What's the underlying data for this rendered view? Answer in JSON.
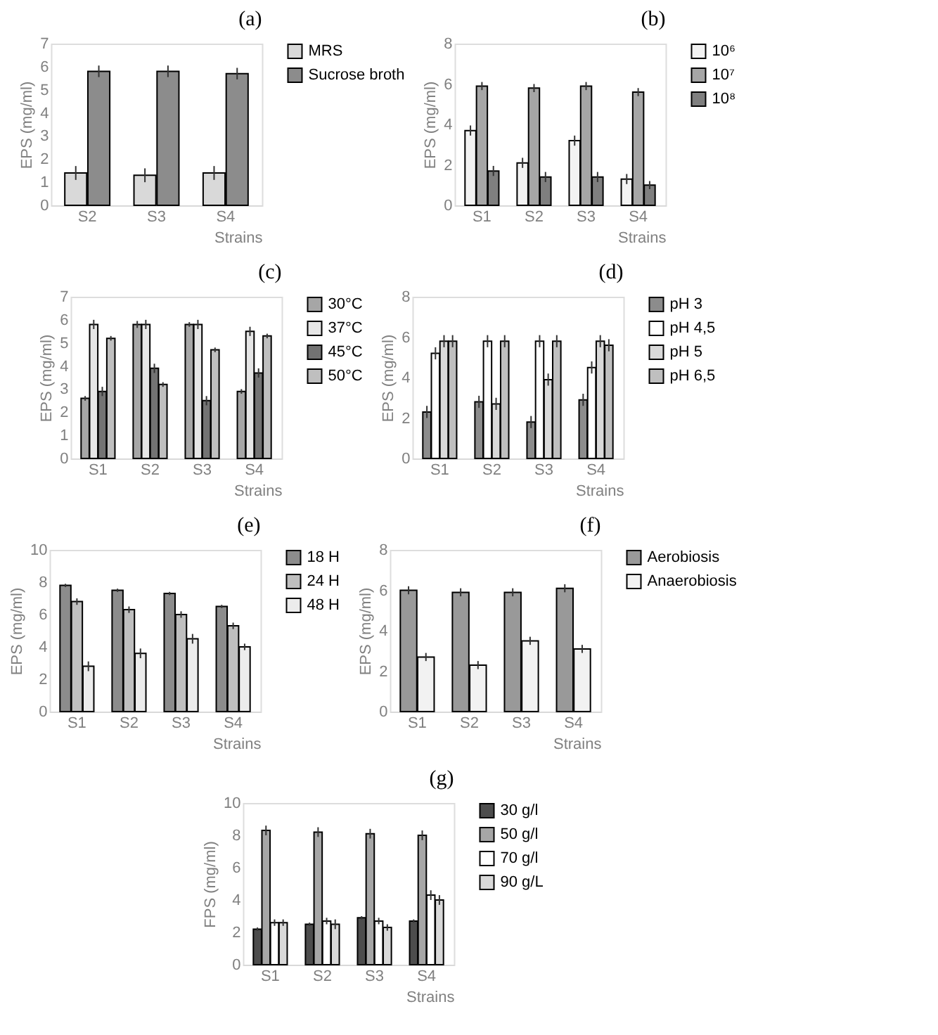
{
  "chart_data": [
    {
      "type": "bar",
      "title": "(a)",
      "xlabel": "Strains",
      "ylabel": "EPS (mg/ml)",
      "categories": [
        "S2",
        "S3",
        "S4"
      ],
      "ylim": [
        0,
        7
      ],
      "yticks": [
        0,
        1,
        2,
        3,
        4,
        5,
        6,
        7
      ],
      "grid": false,
      "legend": "right",
      "series": [
        {
          "name": "MRS",
          "color": "#d9d9d9",
          "values": [
            1.4,
            1.3,
            1.4
          ],
          "errors": [
            0.3,
            0.3,
            0.3
          ]
        },
        {
          "name": "Sucrose broth",
          "color": "#8c8c8c",
          "values": [
            5.8,
            5.8,
            5.7
          ],
          "errors": [
            0.25,
            0.25,
            0.25
          ]
        }
      ]
    },
    {
      "type": "bar",
      "title": "(b)",
      "xlabel": "Strains",
      "ylabel": "EPS (mg/ml)",
      "categories": [
        "S1",
        "S2",
        "S3",
        "S4"
      ],
      "ylim": [
        0,
        8
      ],
      "yticks": [
        0,
        2,
        4,
        6,
        8
      ],
      "grid": false,
      "legend": "right",
      "series": [
        {
          "name": "10⁶",
          "color": "#f2f2f2",
          "values": [
            3.7,
            2.1,
            3.2,
            1.3
          ],
          "errors": [
            0.25,
            0.25,
            0.25,
            0.25
          ]
        },
        {
          "name": "10⁷",
          "color": "#a6a6a6",
          "values": [
            5.9,
            5.8,
            5.9,
            5.6
          ],
          "errors": [
            0.2,
            0.2,
            0.2,
            0.2
          ]
        },
        {
          "name": "10⁸",
          "color": "#7f7f7f",
          "values": [
            1.7,
            1.4,
            1.4,
            1.0
          ],
          "errors": [
            0.25,
            0.25,
            0.25,
            0.2
          ]
        }
      ]
    },
    {
      "type": "bar",
      "title": "(c)",
      "xlabel": "Strains",
      "ylabel": "EPS (mg/ml)",
      "categories": [
        "S1",
        "S2",
        "S3",
        "S4"
      ],
      "ylim": [
        0,
        7
      ],
      "yticks": [
        0,
        1,
        2,
        3,
        4,
        5,
        6,
        7
      ],
      "grid": false,
      "legend": "right",
      "series": [
        {
          "name": "30°C",
          "color": "#a6a6a6",
          "values": [
            2.6,
            5.8,
            5.8,
            2.9
          ],
          "errors": [
            0.1,
            0.15,
            0.1,
            0.1
          ]
        },
        {
          "name": "37°C",
          "color": "#e6e6e6",
          "values": [
            5.8,
            5.8,
            5.8,
            5.5
          ],
          "errors": [
            0.2,
            0.2,
            0.2,
            0.2
          ]
        },
        {
          "name": "45°C",
          "color": "#737373",
          "values": [
            2.9,
            3.9,
            2.5,
            3.7
          ],
          "errors": [
            0.2,
            0.2,
            0.2,
            0.2
          ]
        },
        {
          "name": "50°C",
          "color": "#bfbfbf",
          "values": [
            5.2,
            3.2,
            4.7,
            5.3
          ],
          "errors": [
            0.1,
            0.1,
            0.1,
            0.1
          ]
        }
      ]
    },
    {
      "type": "bar",
      "title": "(d)",
      "xlabel": "Strains",
      "ylabel": "EPS (mg/ml)",
      "categories": [
        "S1",
        "S2",
        "S3",
        "S4"
      ],
      "ylim": [
        0,
        8
      ],
      "yticks": [
        0,
        2,
        4,
        6,
        8
      ],
      "grid": false,
      "legend": "right",
      "series": [
        {
          "name": "pH 3",
          "color": "#8c8c8c",
          "values": [
            2.3,
            2.8,
            1.8,
            2.9
          ],
          "errors": [
            0.3,
            0.3,
            0.3,
            0.3
          ]
        },
        {
          "name": "pH 4,5",
          "color": "#ffffff",
          "values": [
            5.2,
            5.8,
            5.8,
            4.5
          ],
          "errors": [
            0.3,
            0.3,
            0.3,
            0.3
          ]
        },
        {
          "name": "pH 5",
          "color": "#d9d9d9",
          "values": [
            5.8,
            2.7,
            3.9,
            5.8
          ],
          "errors": [
            0.3,
            0.3,
            0.3,
            0.3
          ]
        },
        {
          "name": "pH 6,5",
          "color": "#bfbfbf",
          "values": [
            5.8,
            5.8,
            5.8,
            5.6
          ],
          "errors": [
            0.3,
            0.3,
            0.3,
            0.3
          ]
        }
      ]
    },
    {
      "type": "bar",
      "title": "(e)",
      "xlabel": "Strains",
      "ylabel": "EPS  (mg/ml)",
      "categories": [
        "S1",
        "S2",
        "S3",
        "S4"
      ],
      "ylim": [
        0,
        10
      ],
      "yticks": [
        0,
        2,
        4,
        6,
        8,
        10
      ],
      "grid": false,
      "legend": "right",
      "series": [
        {
          "name": "18 H",
          "color": "#8c8c8c",
          "values": [
            7.8,
            7.5,
            7.3,
            6.5
          ],
          "errors": [
            0.1,
            0.1,
            0.1,
            0.1
          ]
        },
        {
          "name": "24 H",
          "color": "#bfbfbf",
          "values": [
            6.8,
            6.3,
            6.0,
            5.3
          ],
          "errors": [
            0.2,
            0.2,
            0.2,
            0.2
          ]
        },
        {
          "name": "48 H",
          "color": "#ececec",
          "values": [
            2.8,
            3.6,
            4.5,
            4.0
          ],
          "errors": [
            0.3,
            0.3,
            0.3,
            0.2
          ]
        }
      ]
    },
    {
      "type": "bar",
      "title": "(f)",
      "xlabel": "Strains",
      "ylabel": "EPS (mg/ml)",
      "categories": [
        "S1",
        "S2",
        "S3",
        "S4"
      ],
      "ylim": [
        0,
        8
      ],
      "yticks": [
        0,
        2,
        4,
        6,
        8
      ],
      "grid": false,
      "legend": "right",
      "series": [
        {
          "name": "Aerobiosis",
          "color": "#999999",
          "values": [
            6.0,
            5.9,
            5.9,
            6.1
          ],
          "errors": [
            0.2,
            0.2,
            0.2,
            0.2
          ]
        },
        {
          "name": "Anaerobiosis",
          "color": "#f2f2f2",
          "values": [
            2.7,
            2.3,
            3.5,
            3.1
          ],
          "errors": [
            0.2,
            0.2,
            0.2,
            0.2
          ]
        }
      ]
    },
    {
      "type": "bar",
      "title": "(g)",
      "xlabel": "Strains",
      "ylabel": "FPS (mg/ml)",
      "categories": [
        "S1",
        "S2",
        "S3",
        "S4"
      ],
      "ylim": [
        0,
        10
      ],
      "yticks": [
        0,
        2,
        4,
        6,
        8,
        10
      ],
      "grid": false,
      "legend": "right",
      "series": [
        {
          "name": "30 g/l",
          "color": "#4d4d4d",
          "values": [
            2.2,
            2.5,
            2.9,
            2.7
          ],
          "errors": [
            0.1,
            0.1,
            0.1,
            0.1
          ]
        },
        {
          "name": "50 g/l",
          "color": "#a6a6a6",
          "values": [
            8.3,
            8.2,
            8.1,
            8.0
          ],
          "errors": [
            0.3,
            0.3,
            0.3,
            0.3
          ]
        },
        {
          "name": "70 g/l",
          "color": "#ffffff",
          "values": [
            2.6,
            2.7,
            2.7,
            4.3
          ],
          "errors": [
            0.2,
            0.2,
            0.2,
            0.3
          ]
        },
        {
          "name": "90 g/L",
          "color": "#d9d9d9",
          "values": [
            2.6,
            2.5,
            2.3,
            4.0
          ],
          "errors": [
            0.2,
            0.3,
            0.2,
            0.3
          ]
        }
      ]
    }
  ]
}
